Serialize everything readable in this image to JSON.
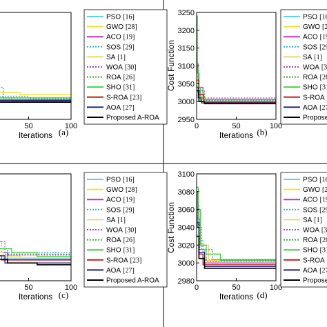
{
  "legend": [
    {
      "name": "PSO",
      "ref": "[16]",
      "color": "#5ad2f0",
      "dash": "solid"
    },
    {
      "name": "GWO",
      "ref": "[28]",
      "color": "#f0e030",
      "dash": "solid"
    },
    {
      "name": "ACO",
      "ref": "[19]",
      "color": "#c030c8",
      "dash": "solid"
    },
    {
      "name": "SOS",
      "ref": "[29]",
      "color": "#30b0e8",
      "dash": "dotted"
    },
    {
      "name": "SA",
      "ref": "[1]",
      "color": "#e8d870",
      "dash": "solid"
    },
    {
      "name": "WOA",
      "ref": "[30]",
      "color": "#b040c0",
      "dash": "dotted"
    },
    {
      "name": "ROA",
      "ref": "[26]",
      "color": "#40a040",
      "dash": "dotted"
    },
    {
      "name": "SHO",
      "ref": "[31]",
      "color": "#40d040",
      "dash": "solid"
    },
    {
      "name": "S-ROA",
      "ref": "[23]",
      "color": "#c02020",
      "dash": "solid"
    },
    {
      "name": "AOA",
      "ref": "[27]",
      "color": "#202080",
      "dash": "solid"
    },
    {
      "name": "Proposed A-ROA",
      "ref": "",
      "color": "#000000",
      "dash": "solid"
    }
  ],
  "chart_data": [
    {
      "type": "line",
      "panel": "(a)",
      "xlabel": "Iterations",
      "ylabel": "",
      "xlim": [
        0,
        100
      ],
      "ylim": [
        2950,
        3250
      ],
      "xticks": [
        50,
        100
      ],
      "xtick_labels": [
        "50",
        "100"
      ],
      "yticks": [],
      "series": [
        {
          "name": "PSO",
          "x": [
            0,
            3,
            8,
            30,
            100
          ],
          "y": [
            3120,
            3040,
            3010,
            3002,
            3002
          ]
        },
        {
          "name": "GWO",
          "x": [
            0,
            4,
            12,
            40,
            100
          ],
          "y": [
            3090,
            3050,
            3025,
            3020,
            3020
          ]
        },
        {
          "name": "ACO",
          "x": [
            0,
            2,
            6,
            100
          ],
          "y": [
            3160,
            3060,
            3005,
            3005
          ]
        },
        {
          "name": "SOS",
          "x": [
            0,
            3,
            10,
            50,
            100
          ],
          "y": [
            3110,
            3040,
            3015,
            3008,
            3008
          ]
        },
        {
          "name": "SA",
          "x": [
            0,
            5,
            15,
            100
          ],
          "y": [
            3080,
            3030,
            3012,
            3012
          ]
        },
        {
          "name": "WOA",
          "x": [
            0,
            3,
            9,
            100
          ],
          "y": [
            3150,
            3050,
            3010,
            3010
          ]
        },
        {
          "name": "ROA",
          "x": [
            0,
            4,
            20,
            100
          ],
          "y": [
            3130,
            3040,
            3006,
            3006
          ]
        },
        {
          "name": "SHO",
          "x": [
            0,
            1,
            2,
            4,
            8,
            100
          ],
          "y": [
            3240,
            3180,
            3070,
            3030,
            3010,
            3010
          ]
        },
        {
          "name": "S-ROA",
          "x": [
            0,
            3,
            10,
            100
          ],
          "y": [
            3090,
            3030,
            3000,
            3000
          ]
        },
        {
          "name": "AOA",
          "x": [
            0,
            4,
            12,
            100
          ],
          "y": [
            3100,
            3040,
            3003,
            3003
          ]
        },
        {
          "name": "Proposed A-ROA",
          "x": [
            0,
            3,
            10,
            100
          ],
          "y": [
            3060,
            3020,
            2998,
            2998
          ]
        }
      ]
    },
    {
      "type": "line",
      "panel": "(b)",
      "xlabel": "Iterations",
      "ylabel": "Cost Function",
      "xlim": [
        0,
        100
      ],
      "ylim": [
        2950,
        3250
      ],
      "xticks": [
        0,
        50,
        100
      ],
      "xtick_labels": [
        "0",
        "50",
        "100"
      ],
      "yticks": [
        2950,
        3000,
        3050,
        3100,
        3150,
        3200,
        3250
      ],
      "ytick_labels": [
        "2950",
        "3000",
        "3050",
        "3100",
        "3150",
        "3200",
        "3250"
      ],
      "series": [
        {
          "name": "PSO",
          "x": [
            0,
            2,
            5,
            100
          ],
          "y": [
            3100,
            3030,
            3000,
            3000
          ]
        },
        {
          "name": "GWO",
          "x": [
            0,
            3,
            8,
            100
          ],
          "y": [
            3060,
            3020,
            3002,
            3002
          ]
        },
        {
          "name": "ACO",
          "x": [
            0,
            1,
            3,
            8,
            100
          ],
          "y": [
            3110,
            3080,
            3040,
            3006,
            3006
          ]
        },
        {
          "name": "SOS",
          "x": [
            0,
            2,
            6,
            100
          ],
          "y": [
            3070,
            3025,
            3004,
            3004
          ]
        },
        {
          "name": "SA",
          "x": [
            0,
            3,
            10,
            100
          ],
          "y": [
            3050,
            3015,
            3001,
            3001
          ]
        },
        {
          "name": "WOA",
          "x": [
            0,
            2,
            5,
            100
          ],
          "y": [
            3110,
            3040,
            3010,
            3010
          ]
        },
        {
          "name": "ROA",
          "x": [
            0,
            3,
            10,
            100
          ],
          "y": [
            3070,
            3030,
            3002,
            3002
          ]
        },
        {
          "name": "SHO",
          "x": [
            0,
            1,
            2,
            5,
            100
          ],
          "y": [
            3240,
            3100,
            3040,
            3000,
            3000
          ]
        },
        {
          "name": "S-ROA",
          "x": [
            0,
            3,
            9,
            100
          ],
          "y": [
            3060,
            3020,
            2998,
            2998
          ]
        },
        {
          "name": "AOA",
          "x": [
            0,
            2,
            6,
            100
          ],
          "y": [
            3040,
            3010,
            2996,
            2996
          ]
        },
        {
          "name": "Proposed A-ROA",
          "x": [
            0,
            3,
            10,
            100
          ],
          "y": [
            3030,
            3000,
            2994,
            2994
          ]
        }
      ]
    },
    {
      "type": "line",
      "panel": "(c)",
      "xlabel": "Iterations",
      "ylabel": "",
      "xlim": [
        0,
        100
      ],
      "ylim": [
        2950,
        3250
      ],
      "xticks": [
        50,
        100
      ],
      "xtick_labels": [
        "50",
        "100"
      ],
      "yticks": [],
      "series": [
        {
          "name": "PSO",
          "x": [
            0,
            5,
            20,
            100
          ],
          "y": [
            3040,
            3020,
            3012,
            3012
          ]
        },
        {
          "name": "GWO",
          "x": [
            0,
            4,
            20,
            40,
            100
          ],
          "y": [
            3060,
            3030,
            3020,
            3016,
            3016
          ]
        },
        {
          "name": "ACO",
          "x": [
            0,
            3,
            10,
            25,
            100
          ],
          "y": [
            3140,
            3090,
            3030,
            3010,
            3010
          ]
        },
        {
          "name": "SOS",
          "x": [
            0,
            5,
            10,
            18,
            100
          ],
          "y": [
            3130,
            3200,
            3060,
            3030,
            3030
          ]
        },
        {
          "name": "SA",
          "x": [
            0,
            6,
            20,
            100
          ],
          "y": [
            3060,
            3030,
            3016,
            3016
          ]
        },
        {
          "name": "WOA",
          "x": [
            0,
            4,
            8,
            22,
            100
          ],
          "y": [
            3150,
            3120,
            3060,
            3025,
            3025
          ]
        },
        {
          "name": "ROA",
          "x": [
            0,
            5,
            10,
            25,
            100
          ],
          "y": [
            3170,
            3120,
            3040,
            3022,
            3022
          ]
        },
        {
          "name": "SHO",
          "x": [
            0,
            5,
            15,
            30,
            60,
            100
          ],
          "y": [
            3080,
            3050,
            3040,
            3030,
            3018,
            3018
          ]
        },
        {
          "name": "S-ROA",
          "x": [
            0,
            6,
            18,
            100
          ],
          "y": [
            3050,
            3020,
            3008,
            3008
          ]
        },
        {
          "name": "AOA",
          "x": [
            0,
            5,
            10,
            22,
            100
          ],
          "y": [
            3110,
            3180,
            3020,
            3000,
            3000
          ]
        },
        {
          "name": "Proposed A-ROA",
          "x": [
            0,
            8,
            25,
            60,
            100
          ],
          "y": [
            3030,
            3010,
            3000,
            2995,
            2995
          ]
        }
      ]
    },
    {
      "type": "line",
      "panel": "(d)",
      "xlabel": "Iterations",
      "ylabel": "Cost Function",
      "xlim": [
        0,
        100
      ],
      "ylim": [
        2980,
        3100
      ],
      "xticks": [
        0,
        50,
        100
      ],
      "xtick_labels": [
        "0",
        "50",
        "100"
      ],
      "yticks": [
        2980,
        3000,
        3020,
        3040,
        3060,
        3080,
        3100
      ],
      "ytick_labels": [
        "2980",
        "3000",
        "3020",
        "3040",
        "3060",
        "3080",
        "3100"
      ],
      "series": [
        {
          "name": "PSO",
          "x": [
            0,
            3,
            10,
            100
          ],
          "y": [
            3050,
            3015,
            3000,
            3000
          ]
        },
        {
          "name": "GWO",
          "x": [
            0,
            4,
            12,
            100
          ],
          "y": [
            3060,
            3020,
            3003,
            3003
          ]
        },
        {
          "name": "ACO",
          "x": [
            0,
            1,
            3,
            8,
            100
          ],
          "y": [
            3080,
            3040,
            3010,
            3000,
            3000
          ]
        },
        {
          "name": "SOS",
          "x": [
            0,
            3,
            8,
            100
          ],
          "y": [
            3065,
            3025,
            3004,
            3004
          ]
        },
        {
          "name": "SA",
          "x": [
            0,
            4,
            15,
            100
          ],
          "y": [
            3055,
            3020,
            3002,
            3002
          ]
        },
        {
          "name": "WOA",
          "x": [
            0,
            2,
            4,
            12,
            100
          ],
          "y": [
            3080,
            3050,
            3015,
            3002,
            3002
          ]
        },
        {
          "name": "ROA",
          "x": [
            0,
            2,
            6,
            20,
            100
          ],
          "y": [
            3070,
            3040,
            3015,
            3004,
            3004
          ]
        },
        {
          "name": "SHO",
          "x": [
            0,
            2,
            5,
            12,
            30,
            100
          ],
          "y": [
            3085,
            3060,
            3020,
            3010,
            3003,
            3003
          ]
        },
        {
          "name": "S-ROA",
          "x": [
            0,
            3,
            8,
            100
          ],
          "y": [
            3040,
            3010,
            2998,
            2998
          ]
        },
        {
          "name": "AOA",
          "x": [
            0,
            3,
            10,
            100
          ],
          "y": [
            3045,
            3012,
            2996,
            2996
          ]
        },
        {
          "name": "Proposed A-ROA",
          "x": [
            0,
            3,
            10,
            100
          ],
          "y": [
            3030,
            3005,
            2994,
            2994
          ]
        }
      ]
    }
  ]
}
